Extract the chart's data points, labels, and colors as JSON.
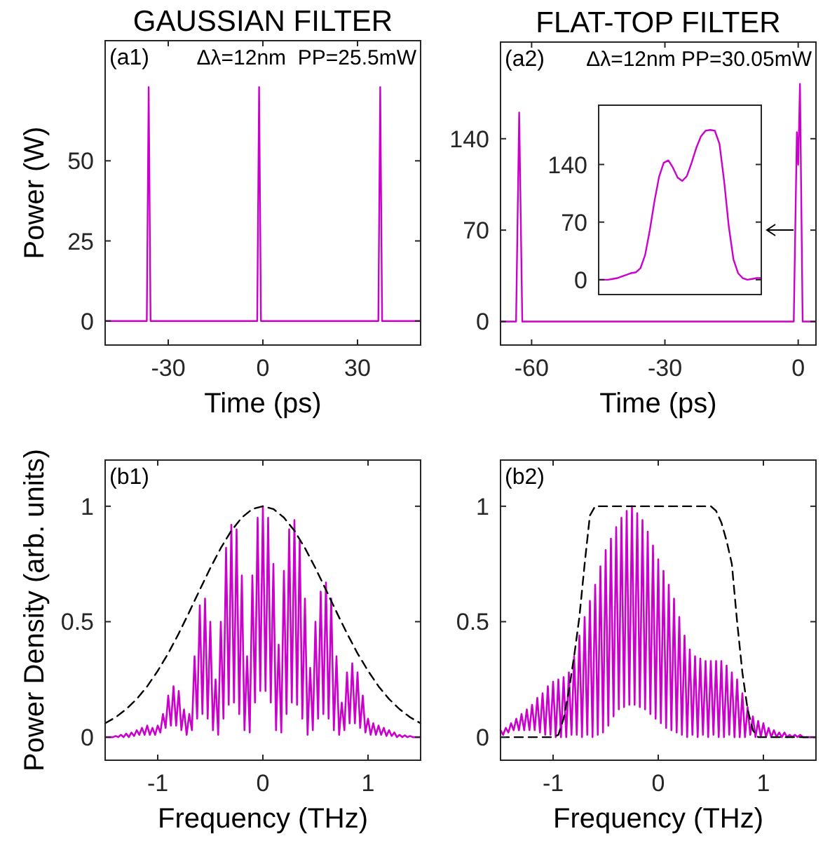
{
  "chart_data": [
    {
      "type": "line",
      "title": "GAUSSIAN FILTER",
      "xlabel": "Time (ps)",
      "ylabel": "Power (W)",
      "xlim": [
        -50,
        50
      ],
      "ylim": [
        -7.5,
        87.5
      ],
      "xticks": [
        -30,
        0,
        30
      ],
      "yticks": [
        0,
        25,
        50
      ],
      "annotations": [
        "(a1)",
        "Δλ=12nm  PP=25.5mW"
      ],
      "series": [
        {
          "color": "#cc00cc",
          "x": [
            -50,
            -36.8,
            -36.2,
            -35.6,
            -1.8,
            -1.2,
            -0.6,
            36.6,
            37.2,
            37.8,
            50
          ],
          "values": [
            0,
            0,
            73,
            0,
            0,
            73,
            0,
            0,
            73,
            0,
            0
          ]
        }
      ]
    },
    {
      "type": "line",
      "title": "FLAT-TOP FILTER",
      "xlabel": "Time (ps)",
      "xlim": [
        -67,
        4
      ],
      "ylim": [
        -18,
        214
      ],
      "xticks": [
        -60,
        -30,
        0
      ],
      "yticks": [
        0,
        70,
        140
      ],
      "annotations": [
        "(a2)",
        "Δλ=12nm PP=30.05mW"
      ],
      "series": [
        {
          "color": "#cc00cc",
          "x": [
            -67,
            -63.5,
            -62.8,
            -62.1,
            -1,
            -0.3,
            0,
            0.4,
            1,
            4
          ],
          "values": [
            0,
            0,
            160,
            0,
            0,
            145,
            120,
            182,
            0,
            0
          ]
        }
      ]
    },
    {
      "type": "line",
      "categories": [
        null,
        null,
        null,
        null,
        null,
        null,
        null,
        null,
        null,
        null,
        null,
        null,
        null,
        null,
        null,
        null,
        null,
        null,
        null,
        null,
        null,
        null,
        null,
        null,
        null,
        null,
        null,
        null,
        null,
        null,
        null,
        null,
        null,
        null,
        null,
        null
      ],
      "ylim": [
        -18,
        212
      ],
      "yticks": [
        0,
        70,
        140
      ],
      "tick_labels": "y",
      "series": [
        {
          "color": "#cc00cc",
          "values": [
            0,
            0,
            0,
            1,
            2,
            4,
            6,
            8,
            9,
            14,
            30,
            60,
            95,
            125,
            142,
            145,
            136,
            124,
            120,
            126,
            142,
            160,
            174,
            181,
            182,
            181,
            165,
            120,
            65,
            25,
            8,
            2,
            0,
            1,
            2,
            2
          ]
        }
      ]
    },
    {
      "type": "line",
      "xlabel": "Frequency (THz)",
      "ylabel": "Power Density (arb. units)",
      "xlim": [
        -1.5,
        1.5
      ],
      "ylim": [
        -0.1,
        1.2
      ],
      "xticks": [
        -1,
        0,
        1
      ],
      "yticks": [
        0,
        0.5,
        1
      ],
      "annotations": [
        "(b1)"
      ],
      "series": [
        {
          "color": "#cc00cc",
          "x": [
            -1.5,
            -1.475,
            -1.45,
            -1.425,
            -1.4,
            -1.375,
            -1.35,
            -1.325,
            -1.3,
            -1.275,
            -1.25,
            -1.225,
            -1.2,
            -1.175,
            -1.15,
            -1.125,
            -1.1,
            -1.075,
            -1.05,
            -1.025,
            -1,
            -0.975,
            -0.95,
            -0.925,
            -0.9,
            -0.875,
            -0.85,
            -0.825,
            -0.8,
            -0.775,
            -0.75,
            -0.725,
            -0.7,
            -0.675,
            -0.65,
            -0.625,
            -0.6,
            -0.575,
            -0.55,
            -0.525,
            -0.5,
            -0.475,
            -0.45,
            -0.425,
            -0.4,
            -0.375,
            -0.35,
            -0.325,
            -0.3,
            -0.275,
            -0.25,
            -0.225,
            -0.2,
            -0.175,
            -0.15,
            -0.125,
            -0.1,
            -0.075,
            -0.05,
            -0.025,
            0,
            0.025,
            0.05,
            0.075,
            0.1,
            0.125,
            0.15,
            0.175,
            0.2,
            0.225,
            0.25,
            0.275,
            0.3,
            0.325,
            0.35,
            0.375,
            0.4,
            0.425,
            0.45,
            0.475,
            0.5,
            0.525,
            0.55,
            0.575,
            0.6,
            0.625,
            0.65,
            0.675,
            0.7,
            0.725,
            0.75,
            0.775,
            0.8,
            0.825,
            0.85,
            0.875,
            0.9,
            0.925,
            0.95,
            0.975,
            1,
            1.025,
            1.05,
            1.075,
            1.1,
            1.125,
            1.15,
            1.175,
            1.2,
            1.225,
            1.25,
            1.275,
            1.3,
            1.325,
            1.35,
            1.375,
            1.4,
            1.425,
            1.45,
            1.475,
            1.5
          ],
          "values": [
            0,
            0,
            0,
            0,
            0.005,
            0,
            0.01,
            0,
            0.015,
            0,
            0.02,
            0.005,
            0.03,
            0.01,
            0.04,
            0.01,
            0.05,
            0.01,
            0.04,
            0.01,
            0.05,
            0.02,
            0.1,
            0.04,
            0.18,
            0.05,
            0.22,
            0.05,
            0.2,
            0.03,
            0.12,
            0.01,
            0.1,
            0.03,
            0.35,
            0.08,
            0.57,
            0.1,
            0.6,
            0.08,
            0.5,
            0.03,
            0.25,
            0.01,
            0.5,
            0.08,
            0.82,
            0.14,
            0.92,
            0.15,
            0.9,
            0.1,
            0.7,
            0.03,
            0.35,
            0.02,
            0.7,
            0.15,
            0.95,
            0.2,
            1.0,
            0.2,
            0.95,
            0.15,
            0.75,
            0.03,
            0.4,
            0.02,
            0.72,
            0.1,
            0.9,
            0.15,
            0.94,
            0.14,
            0.85,
            0.08,
            0.6,
            0.01,
            0.3,
            0.03,
            0.5,
            0.08,
            0.63,
            0.1,
            0.67,
            0.08,
            0.6,
            0.03,
            0.35,
            0.01,
            0.15,
            0.03,
            0.28,
            0.06,
            0.32,
            0.06,
            0.28,
            0.04,
            0.18,
            0.02,
            0.08,
            0.01,
            0.06,
            0.01,
            0.05,
            0.01,
            0.04,
            0.005,
            0.03,
            0.005,
            0.02,
            0,
            0.01,
            0,
            0.008,
            0,
            0.005,
            0,
            0,
            0,
            0
          ]
        },
        {
          "color": "#000000",
          "line_style": "dashed",
          "x": [
            -1.5,
            -1.4,
            -1.3,
            -1.2,
            -1.1,
            -1,
            -0.9,
            -0.8,
            -0.7,
            -0.6,
            -0.5,
            -0.4,
            -0.3,
            -0.2,
            -0.1,
            0,
            0.1,
            0.2,
            0.3,
            0.4,
            0.5,
            0.6,
            0.7,
            0.8,
            0.9,
            1,
            1.1,
            1.2,
            1.3,
            1.4,
            1.5
          ],
          "values": [
            0.06,
            0.086,
            0.121,
            0.165,
            0.22,
            0.287,
            0.363,
            0.449,
            0.542,
            0.638,
            0.732,
            0.819,
            0.894,
            0.951,
            0.988,
            1,
            0.988,
            0.951,
            0.894,
            0.819,
            0.732,
            0.638,
            0.542,
            0.449,
            0.363,
            0.287,
            0.22,
            0.165,
            0.121,
            0.086,
            0.06
          ]
        }
      ]
    },
    {
      "type": "line",
      "xlabel": "Frequency (THz)",
      "xlim": [
        -1.5,
        1.5
      ],
      "ylim": [
        -0.1,
        1.2
      ],
      "xticks": [
        -1,
        0,
        1
      ],
      "yticks": [
        0,
        0.5,
        1
      ],
      "annotations": [
        "(b2)"
      ],
      "series": [
        {
          "color": "#cc00cc",
          "x": [
            -1.5,
            -1.475,
            -1.45,
            -1.425,
            -1.4,
            -1.375,
            -1.35,
            -1.325,
            -1.3,
            -1.275,
            -1.25,
            -1.225,
            -1.2,
            -1.175,
            -1.15,
            -1.125,
            -1.1,
            -1.075,
            -1.05,
            -1.025,
            -1,
            -0.975,
            -0.95,
            -0.925,
            -0.9,
            -0.875,
            -0.85,
            -0.825,
            -0.8,
            -0.775,
            -0.75,
            -0.725,
            -0.7,
            -0.675,
            -0.65,
            -0.625,
            -0.6,
            -0.575,
            -0.55,
            -0.525,
            -0.5,
            -0.475,
            -0.45,
            -0.425,
            -0.4,
            -0.375,
            -0.35,
            -0.325,
            -0.3,
            -0.275,
            -0.25,
            -0.225,
            -0.2,
            -0.175,
            -0.15,
            -0.125,
            -0.1,
            -0.075,
            -0.05,
            -0.025,
            0,
            0.025,
            0.05,
            0.075,
            0.1,
            0.125,
            0.15,
            0.175,
            0.2,
            0.225,
            0.25,
            0.275,
            0.3,
            0.325,
            0.35,
            0.375,
            0.4,
            0.425,
            0.45,
            0.475,
            0.5,
            0.525,
            0.55,
            0.575,
            0.6,
            0.625,
            0.65,
            0.675,
            0.7,
            0.725,
            0.75,
            0.775,
            0.8,
            0.825,
            0.85,
            0.875,
            0.9,
            0.925,
            0.95,
            0.975,
            1,
            1.025,
            1.05,
            1.075,
            1.1,
            1.125,
            1.15,
            1.175,
            1.2,
            1.225,
            1.25,
            1.275,
            1.3,
            1.325,
            1.35,
            1.375,
            1.4,
            1.425,
            1.45,
            1.475,
            1.5
          ],
          "values": [
            0.03,
            0.01,
            0.04,
            0.02,
            0.06,
            0.03,
            0.08,
            0.03,
            0.1,
            0.03,
            0.12,
            0.03,
            0.14,
            0.03,
            0.17,
            0.02,
            0.19,
            0.01,
            0.22,
            0.01,
            0.24,
            0,
            0.25,
            0,
            0.26,
            0,
            0.28,
            0.01,
            0.35,
            0.01,
            0.44,
            0,
            0.52,
            0.01,
            0.59,
            0,
            0.66,
            0.01,
            0.74,
            0.02,
            0.81,
            0.05,
            0.86,
            0.09,
            0.91,
            0.12,
            0.95,
            0.13,
            0.98,
            0.14,
            1.0,
            0.14,
            0.97,
            0.13,
            0.94,
            0.12,
            0.89,
            0.1,
            0.83,
            0.08,
            0.77,
            0.06,
            0.72,
            0.04,
            0.66,
            0.03,
            0.6,
            0.02,
            0.52,
            0.01,
            0.44,
            0,
            0.38,
            0.01,
            0.35,
            0,
            0.34,
            0.01,
            0.33,
            0,
            0.33,
            0.01,
            0.33,
            0,
            0.33,
            0,
            0.31,
            0.01,
            0.28,
            0,
            0.25,
            0,
            0.19,
            0,
            0.13,
            0.01,
            0.09,
            0,
            0.07,
            0,
            0.06,
            0,
            0.04,
            0,
            0.03,
            0,
            0.02,
            0,
            0.02,
            0,
            0.01,
            0,
            0.01,
            0,
            0.01,
            0,
            0,
            0,
            0,
            0,
            0
          ]
        },
        {
          "color": "#000000",
          "line_style": "dashed",
          "x": [
            -1.5,
            -1,
            -0.95,
            -0.9,
            -0.85,
            -0.8,
            -0.75,
            -0.7,
            -0.65,
            -0.6,
            0.5,
            0.55,
            0.6,
            0.65,
            0.7,
            0.75,
            0.8,
            0.85,
            0.9,
            0.95,
            1.5
          ],
          "values": [
            0,
            0,
            0.01,
            0.08,
            0.2,
            0.35,
            0.52,
            0.75,
            0.96,
            1,
            1,
            0.98,
            0.93,
            0.85,
            0.75,
            0.5,
            0.28,
            0.12,
            0.03,
            0,
            0
          ]
        }
      ]
    }
  ]
}
